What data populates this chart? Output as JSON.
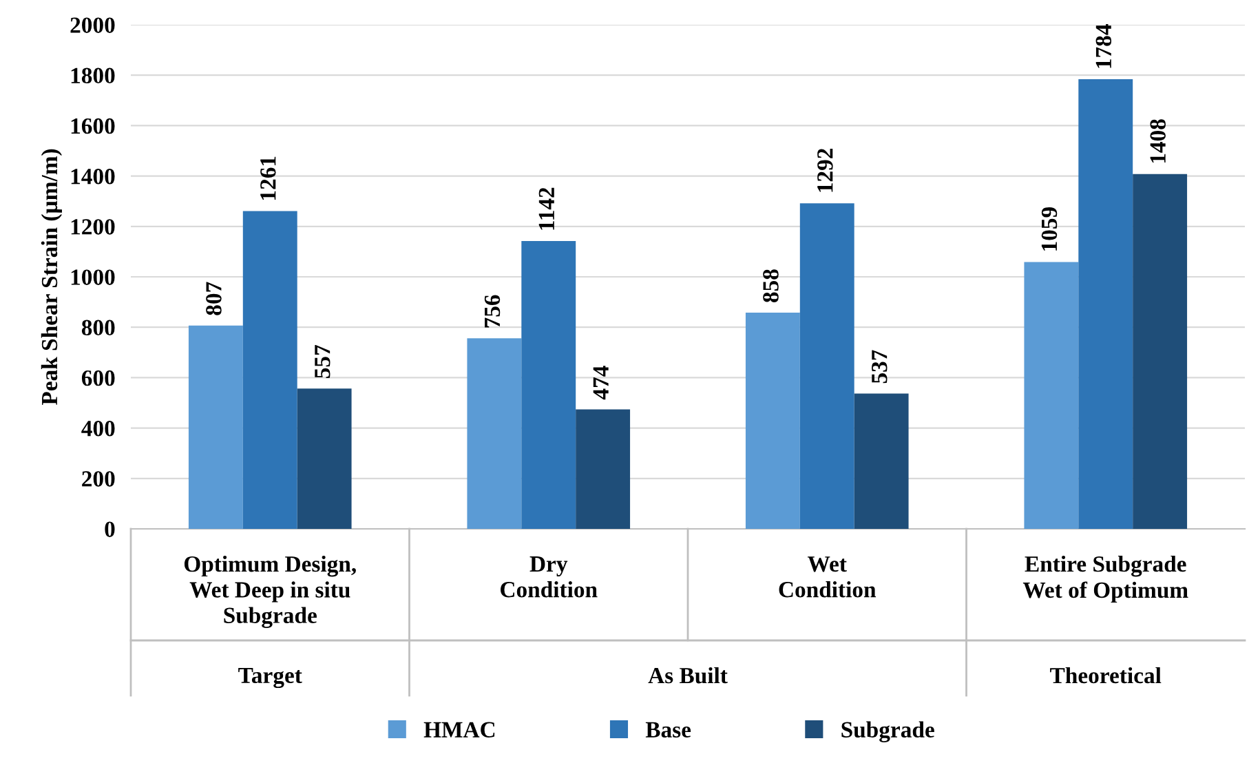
{
  "chart_data": {
    "type": "bar",
    "ylabel": "Peak Shear Strain (µm/m)",
    "categories": [
      "Optimum Design,\nWet Deep in situ\nSubgrade",
      "Dry\nCondition",
      "Wet\nCondition",
      "Entire Subgrade\nWet of Optimum"
    ],
    "series": [
      {
        "name": "HMAC",
        "color": "#5b9bd5",
        "values": [
          807,
          756,
          858,
          1059
        ]
      },
      {
        "name": "Base",
        "color": "#2e75b6",
        "values": [
          1261,
          1142,
          1292,
          1784
        ]
      },
      {
        "name": "Subgrade",
        "color": "#1f4e79",
        "values": [
          557,
          474,
          537,
          1408
        ]
      }
    ],
    "ylim": [
      0,
      2000
    ],
    "yticks": [
      0,
      200,
      400,
      600,
      800,
      1000,
      1200,
      1400,
      1600,
      1800,
      2000
    ],
    "grid": "y",
    "legend": "bottom",
    "data_labels": true,
    "annotations": [
      "Target",
      "As Built",
      "Theoretical"
    ]
  }
}
